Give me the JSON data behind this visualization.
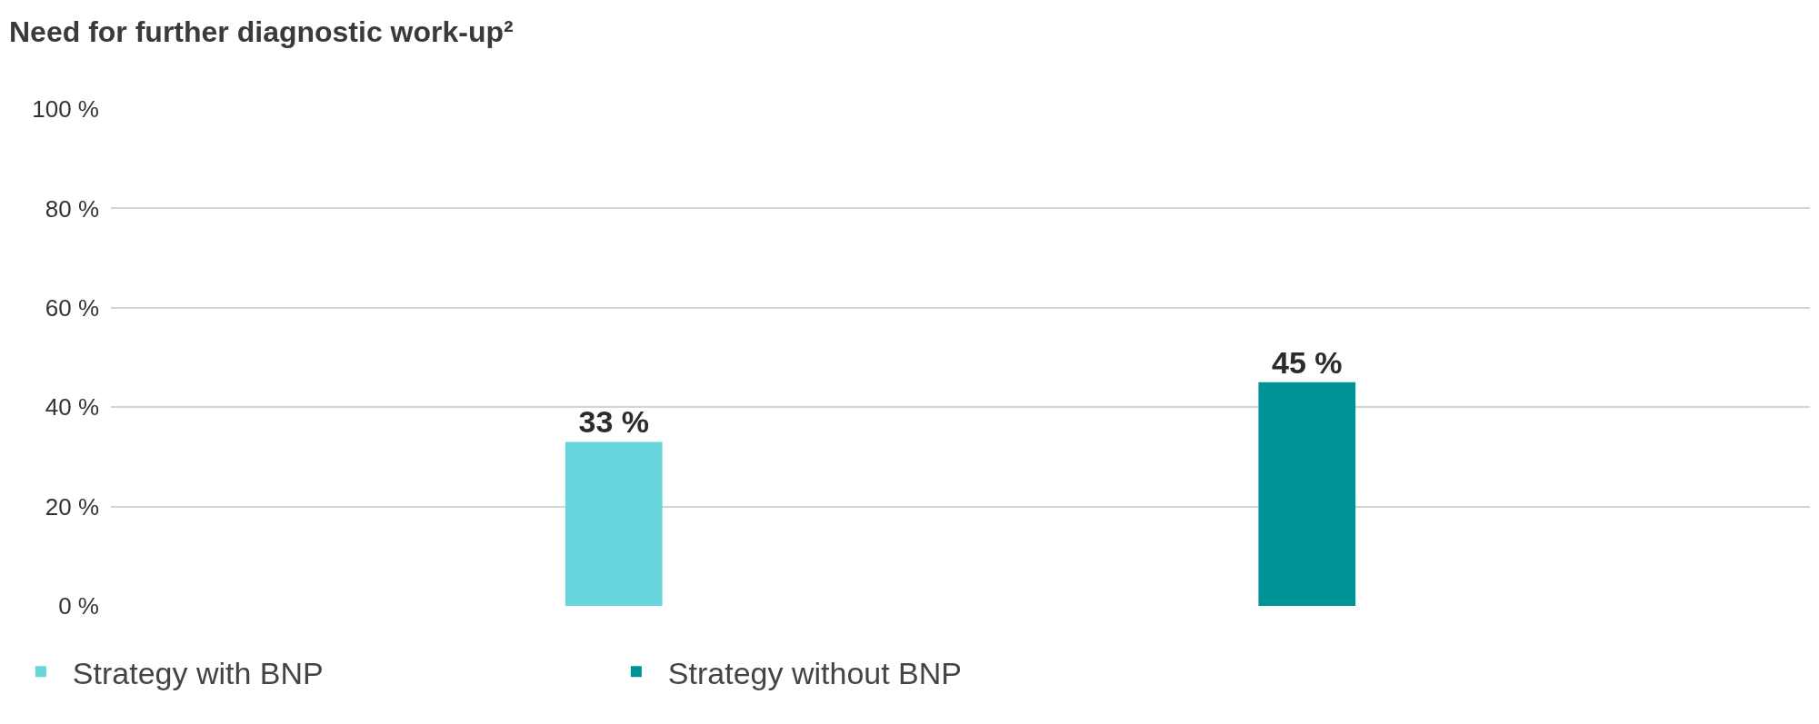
{
  "chart_data": {
    "type": "bar",
    "title": "Need for further diagnostic work-up²",
    "categories": [
      null
    ],
    "series": [
      {
        "name": "Strategy with BNP",
        "color": "#66d6dc",
        "values": [
          33
        ],
        "value_labels": [
          "33 %"
        ]
      },
      {
        "name": "Strategy without BNP",
        "color": "#009396",
        "values": [
          45
        ],
        "value_labels": [
          "45 %"
        ]
      }
    ],
    "ylim": [
      0,
      100
    ],
    "yticks": [
      {
        "value": 0,
        "label": "0 %"
      },
      {
        "value": 20,
        "label": "20 %"
      },
      {
        "value": 40,
        "label": "40 %"
      },
      {
        "value": 60,
        "label": "60 %"
      },
      {
        "value": 80,
        "label": "80 %"
      },
      {
        "value": 100,
        "label": "100 %"
      }
    ],
    "grid": "y",
    "legend": "bottom left"
  }
}
